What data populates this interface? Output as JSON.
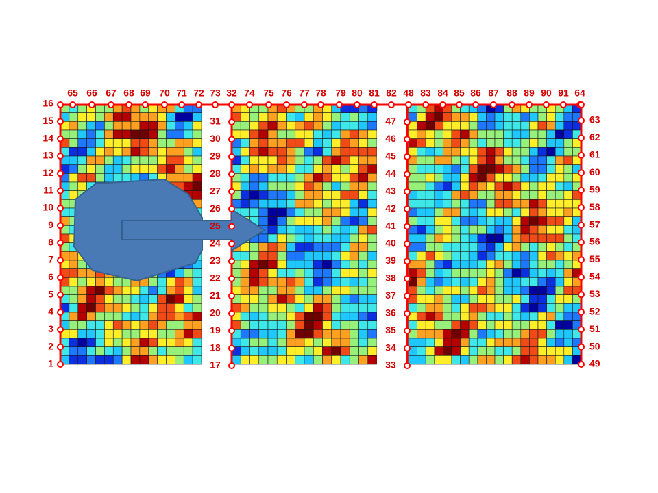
{
  "colors": {
    "wire": "#ff0000",
    "label": "#d40000",
    "gridline": "#1a1a1a",
    "shape_fill": "#4a7ab5",
    "shape_stroke": "#35618f",
    "colormap": [
      "#0000a0",
      "#0a2ee0",
      "#1e78ff",
      "#1ec8ff",
      "#3ee8e8",
      "#96f07a",
      "#ffee28",
      "#ffa020",
      "#f04a16",
      "#b40000",
      "#6e0000"
    ]
  },
  "panels": [
    {
      "name": "left-panel"
    },
    {
      "name": "middle-panel"
    },
    {
      "name": "right-panel"
    }
  ],
  "channels": {
    "top": [
      "65",
      "66",
      "67",
      "68",
      "69",
      "70",
      "71",
      "72",
      "73",
      "32",
      "74",
      "75",
      "76",
      "77",
      "78",
      "79",
      "80",
      "81",
      "82",
      "48",
      "83",
      "84",
      "85",
      "86",
      "87",
      "88",
      "89",
      "90",
      "91",
      "64"
    ],
    "left": [
      "16",
      "15",
      "14",
      "13",
      "12",
      "11",
      "10",
      "9",
      "8",
      "7",
      "6",
      "5",
      "4",
      "3",
      "2",
      "1"
    ],
    "middle_left": [
      "31",
      "30",
      "29",
      "28",
      "27",
      "26",
      "25",
      "24",
      "23",
      "22",
      "21",
      "20",
      "19",
      "18",
      "17"
    ],
    "middle_right": [
      "47",
      "46",
      "45",
      "44",
      "43",
      "42",
      "41",
      "40",
      "39",
      "38",
      "37",
      "36",
      "35",
      "34",
      "33"
    ],
    "right": [
      "63",
      "62",
      "61",
      "60",
      "59",
      "58",
      "57",
      "56",
      "55",
      "54",
      "53",
      "52",
      "51",
      "50",
      "49"
    ]
  },
  "shapes": {
    "octagon_icon": "blob",
    "arrow_icon": "right-arrow"
  }
}
